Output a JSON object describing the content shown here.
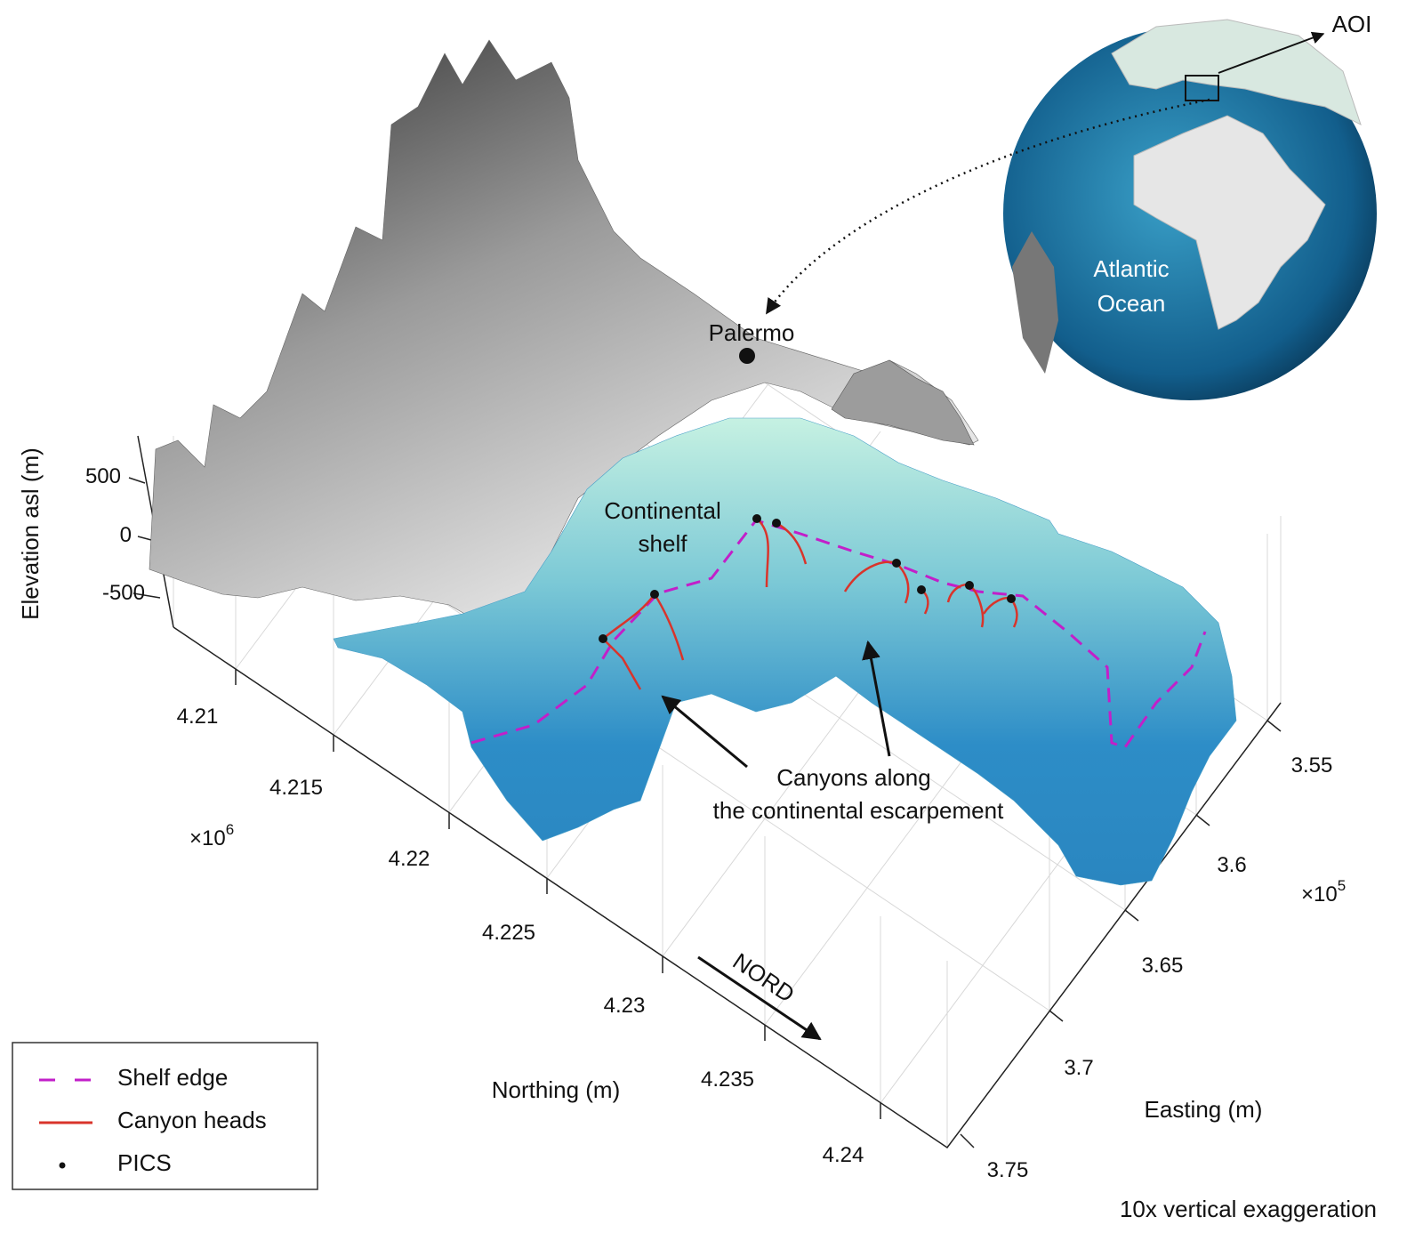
{
  "figure": {
    "vertical_exaggeration_note": "10x vertical exaggeration",
    "annotations": {
      "city": "Palermo",
      "continental_shelf_line1": "Continental",
      "continental_shelf_line2": "shelf",
      "canyons_line1": "Canyons along",
      "canyons_line2": "the continental escarpement",
      "north_arrow": "NORD",
      "aoi": "AOI",
      "ocean_line1": "Atlantic",
      "ocean_line2": "Ocean"
    },
    "axes": {
      "z": {
        "label": "Elevation asl (m)",
        "ticks": [
          "500",
          "0",
          "-500"
        ]
      },
      "northing": {
        "label": "Northing (m)",
        "multiplier": "×10",
        "exponent": "6",
        "ticks": [
          "4.21",
          "4.215",
          "4.22",
          "4.225",
          "4.23",
          "4.235",
          "4.24"
        ]
      },
      "easting": {
        "label": "Easting (m)",
        "multiplier": "×10",
        "exponent": "5",
        "ticks": [
          "3.55",
          "3.6",
          "3.65",
          "3.7",
          "3.75"
        ]
      }
    },
    "legend": {
      "items": [
        {
          "label": "Shelf edge",
          "style": "dashed",
          "color": "#c21fc9"
        },
        {
          "label": "Canyon heads",
          "style": "solid",
          "color": "#d9342b"
        },
        {
          "label": "PICS",
          "style": "dot",
          "color": "#111111"
        }
      ]
    },
    "colors": {
      "land": "#8a8a8a",
      "shelf": "#bfeee0",
      "deep_sea": "#1f7fc0"
    }
  }
}
